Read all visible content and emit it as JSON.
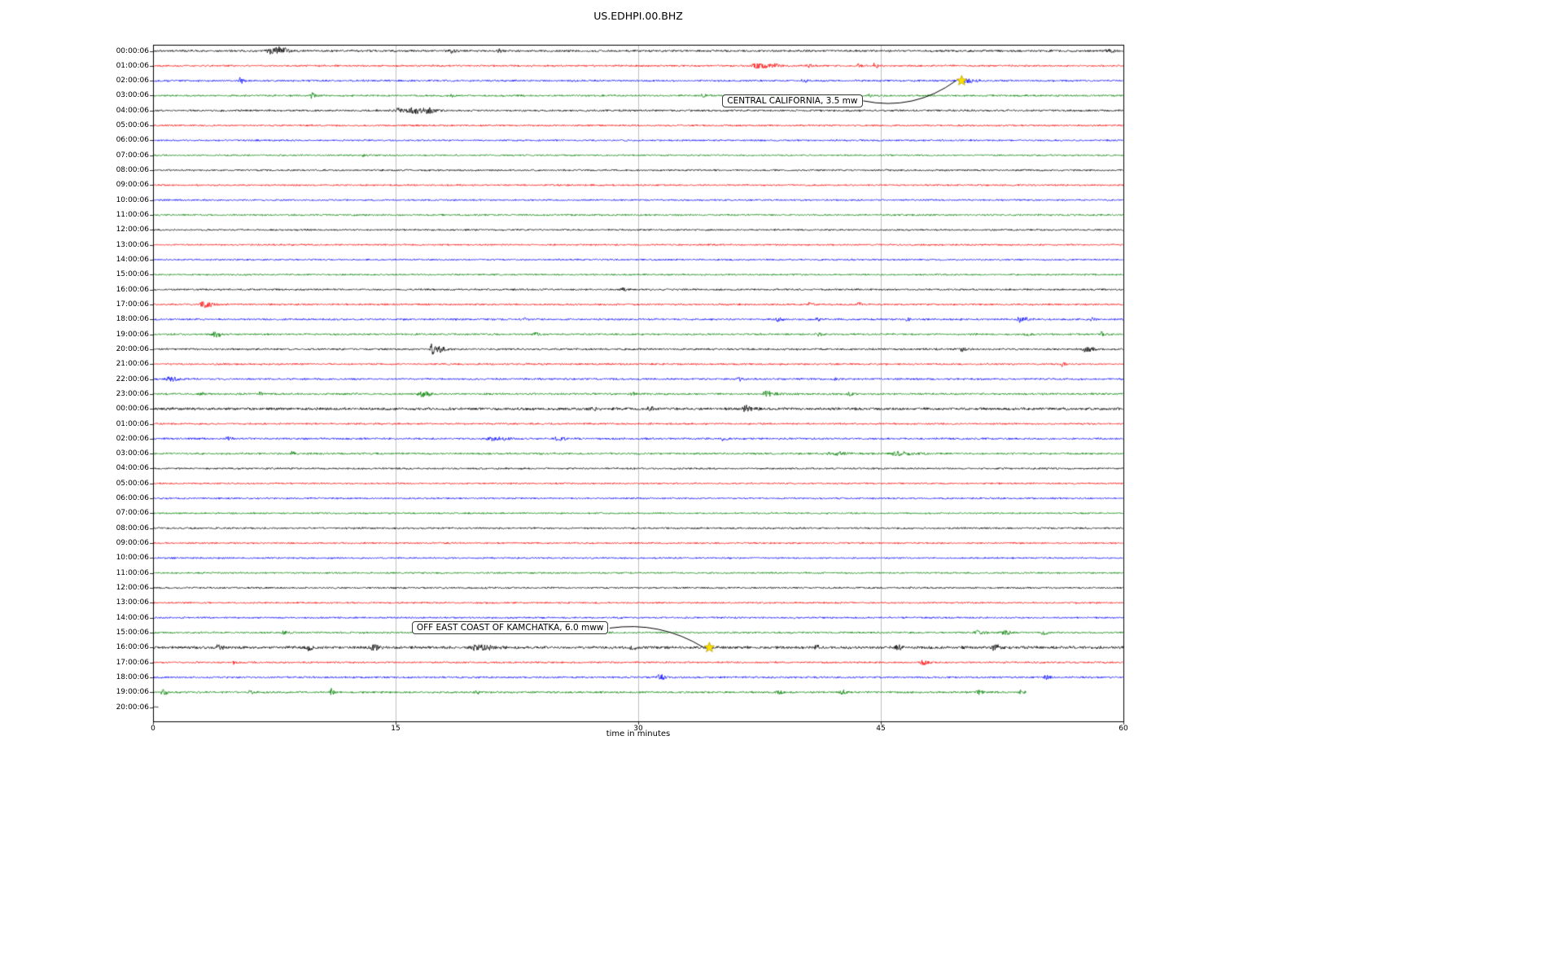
{
  "chart_data": {
    "type": "line",
    "subtype": "seismogram-helicorder-dayplot",
    "title": "US.EDHPI.00.BHZ",
    "xlabel": "time in minutes",
    "xlim": [
      0,
      60
    ],
    "x_ticks": [
      0,
      15,
      30,
      45,
      60
    ],
    "grid": "vertical-only",
    "grid_color": "#b0b0b0",
    "axis_border_color": "#000000",
    "trace_colors_cycle": [
      "#000000",
      "#ff0000",
      "#0000ff",
      "#008000"
    ],
    "marker": "star",
    "marker_color": "#ffe000",
    "rows": [
      {
        "label": "00:00:06",
        "noise": 1.15,
        "len": 60,
        "events": [
          [
            7.3,
            3.8,
            1.0
          ],
          [
            7.9,
            3.0,
            0.5
          ],
          [
            18.5,
            2.3,
            0.5
          ],
          [
            21.3,
            1.8,
            0.4
          ],
          [
            27.5,
            1.2,
            0.3
          ],
          [
            59.0,
            1.6,
            0.6
          ]
        ]
      },
      {
        "label": "01:00:06",
        "noise": 1.0,
        "len": 60,
        "events": [
          [
            37.3,
            2.8,
            1.2
          ],
          [
            38.3,
            2.2,
            0.6
          ],
          [
            40.5,
            1.5,
            0.4
          ],
          [
            43.6,
            2.8,
            0.25
          ],
          [
            44.6,
            3.2,
            0.3
          ]
        ]
      },
      {
        "label": "02:00:06",
        "noise": 1.0,
        "len": 60,
        "events": [
          [
            5.4,
            3.2,
            0.35
          ],
          [
            40.2,
            1.4,
            0.4
          ],
          [
            50.3,
            2.2,
            0.9
          ]
        ]
      },
      {
        "label": "03:00:06",
        "noise": 1.0,
        "len": 60,
        "events": [
          [
            9.8,
            3.4,
            0.35
          ],
          [
            18.4,
            1.8,
            0.3
          ],
          [
            34.0,
            1.8,
            0.4
          ],
          [
            44.3,
            1.4,
            0.3
          ]
        ]
      },
      {
        "label": "04:00:06",
        "noise": 1.05,
        "len": 60,
        "events": [
          [
            15.1,
            2.6,
            0.6
          ],
          [
            16.0,
            3.6,
            1.0
          ],
          [
            16.9,
            3.2,
            0.7
          ]
        ]
      },
      {
        "label": "05:00:06",
        "noise": 0.95,
        "len": 60,
        "events": []
      },
      {
        "label": "06:00:06",
        "noise": 0.9,
        "len": 60,
        "events": []
      },
      {
        "label": "07:00:06",
        "noise": 0.9,
        "len": 60,
        "events": [
          [
            13.0,
            1.3,
            0.3
          ]
        ]
      },
      {
        "label": "08:00:06",
        "noise": 0.95,
        "len": 60,
        "events": []
      },
      {
        "label": "09:00:06",
        "noise": 0.9,
        "len": 60,
        "events": []
      },
      {
        "label": "10:00:06",
        "noise": 0.9,
        "len": 60,
        "events": []
      },
      {
        "label": "11:00:06",
        "noise": 0.95,
        "len": 60,
        "events": []
      },
      {
        "label": "12:00:06",
        "noise": 0.9,
        "len": 60,
        "events": []
      },
      {
        "label": "13:00:06",
        "noise": 0.9,
        "len": 60,
        "events": []
      },
      {
        "label": "14:00:06",
        "noise": 0.9,
        "len": 60,
        "events": []
      },
      {
        "label": "15:00:06",
        "noise": 0.9,
        "len": 60,
        "events": []
      },
      {
        "label": "16:00:06",
        "noise": 0.95,
        "len": 60,
        "events": [
          [
            29.0,
            1.6,
            0.4
          ]
        ]
      },
      {
        "label": "17:00:06",
        "noise": 1.0,
        "len": 60,
        "events": [
          [
            3.1,
            3.6,
            0.7
          ],
          [
            40.6,
            2.0,
            0.35
          ],
          [
            43.6,
            1.8,
            0.3
          ]
        ]
      },
      {
        "label": "18:00:06",
        "noise": 1.0,
        "len": 60,
        "events": [
          [
            23.0,
            1.8,
            0.3
          ],
          [
            38.6,
            2.0,
            0.4
          ],
          [
            41.0,
            1.8,
            0.3
          ],
          [
            46.6,
            2.0,
            0.3
          ],
          [
            53.6,
            3.0,
            0.7
          ],
          [
            58.0,
            1.8,
            0.4
          ]
        ]
      },
      {
        "label": "19:00:06",
        "noise": 1.0,
        "len": 60,
        "events": [
          [
            3.8,
            2.6,
            0.7
          ],
          [
            23.6,
            2.2,
            0.4
          ],
          [
            41.0,
            2.2,
            0.45
          ],
          [
            54.0,
            2.0,
            0.4
          ],
          [
            58.6,
            2.6,
            0.5
          ]
        ]
      },
      {
        "label": "20:00:06",
        "noise": 1.05,
        "len": 60,
        "events": [
          [
            17.2,
            6.5,
            0.35
          ],
          [
            17.7,
            3.2,
            0.7
          ],
          [
            50.0,
            2.2,
            0.4
          ],
          [
            57.6,
            3.0,
            0.7
          ]
        ]
      },
      {
        "label": "21:00:06",
        "noise": 0.95,
        "len": 60,
        "events": [
          [
            56.2,
            3.2,
            0.25
          ]
        ]
      },
      {
        "label": "22:00:06",
        "noise": 1.0,
        "len": 60,
        "events": [
          [
            1.0,
            3.0,
            0.7
          ],
          [
            36.2,
            2.2,
            0.35
          ],
          [
            42.0,
            1.8,
            0.3
          ]
        ]
      },
      {
        "label": "23:00:06",
        "noise": 1.05,
        "len": 60,
        "events": [
          [
            3.0,
            2.2,
            0.4
          ],
          [
            6.6,
            2.0,
            0.4
          ],
          [
            16.6,
            3.4,
            0.7
          ],
          [
            29.6,
            2.0,
            0.4
          ],
          [
            37.9,
            3.0,
            0.8
          ],
          [
            43.0,
            1.8,
            0.4
          ]
        ]
      },
      {
        "label": "00:00:06",
        "noise": 1.45,
        "len": 60,
        "events": [
          [
            27.0,
            2.0,
            0.6
          ],
          [
            30.6,
            2.2,
            0.5
          ],
          [
            36.6,
            3.0,
            0.7
          ]
        ]
      },
      {
        "label": "01:00:06",
        "noise": 0.95,
        "len": 60,
        "events": []
      },
      {
        "label": "02:00:06",
        "noise": 1.05,
        "len": 60,
        "events": [
          [
            4.6,
            2.4,
            0.35
          ],
          [
            21.0,
            1.6,
            1.5
          ],
          [
            25.0,
            1.6,
            0.8
          ],
          [
            35.2,
            1.8,
            0.5
          ]
        ]
      },
      {
        "label": "03:00:06",
        "noise": 1.05,
        "len": 60,
        "events": [
          [
            8.6,
            2.0,
            0.35
          ],
          [
            42.0,
            1.8,
            1.2
          ],
          [
            46.0,
            2.0,
            1.4
          ]
        ]
      },
      {
        "label": "04:00:06",
        "noise": 0.95,
        "len": 60,
        "events": []
      },
      {
        "label": "05:00:06",
        "noise": 0.9,
        "len": 60,
        "events": []
      },
      {
        "label": "06:00:06",
        "noise": 0.9,
        "len": 60,
        "events": []
      },
      {
        "label": "07:00:06",
        "noise": 0.9,
        "len": 60,
        "events": []
      },
      {
        "label": "08:00:06",
        "noise": 0.95,
        "len": 60,
        "events": []
      },
      {
        "label": "09:00:06",
        "noise": 0.9,
        "len": 60,
        "events": []
      },
      {
        "label": "10:00:06",
        "noise": 0.9,
        "len": 60,
        "events": []
      },
      {
        "label": "11:00:06",
        "noise": 0.9,
        "len": 60,
        "events": []
      },
      {
        "label": "12:00:06",
        "noise": 0.95,
        "len": 60,
        "events": []
      },
      {
        "label": "13:00:06",
        "noise": 0.9,
        "len": 60,
        "events": []
      },
      {
        "label": "14:00:06",
        "noise": 0.95,
        "len": 60,
        "events": []
      },
      {
        "label": "15:00:06",
        "noise": 1.0,
        "len": 60,
        "events": [
          [
            8.0,
            1.8,
            0.4
          ],
          [
            51.0,
            2.4,
            0.7
          ],
          [
            52.6,
            2.6,
            0.7
          ],
          [
            55.0,
            2.2,
            0.5
          ]
        ]
      },
      {
        "label": "16:00:06",
        "noise": 1.5,
        "len": 60,
        "events": [
          [
            4.0,
            2.6,
            0.5
          ],
          [
            9.6,
            3.0,
            0.5
          ],
          [
            13.6,
            3.4,
            0.5
          ],
          [
            20.0,
            2.6,
            1.5
          ],
          [
            29.6,
            2.2,
            0.5
          ],
          [
            41.0,
            2.6,
            0.5
          ],
          [
            46.0,
            2.2,
            0.5
          ],
          [
            52.0,
            2.6,
            0.6
          ]
        ]
      },
      {
        "label": "17:00:06",
        "noise": 0.95,
        "len": 60,
        "events": [
          [
            5.0,
            2.0,
            0.3
          ],
          [
            47.6,
            2.6,
            0.6
          ]
        ]
      },
      {
        "label": "18:00:06",
        "noise": 1.0,
        "len": 60,
        "events": [
          [
            31.3,
            3.0,
            0.5
          ],
          [
            55.2,
            2.2,
            0.4
          ]
        ]
      },
      {
        "label": "19:00:06",
        "noise": 1.05,
        "len": 54,
        "events": [
          [
            0.6,
            3.0,
            0.4
          ],
          [
            6.0,
            2.2,
            0.4
          ],
          [
            11.0,
            4.0,
            0.25
          ],
          [
            20.0,
            1.8,
            0.3
          ],
          [
            38.6,
            2.0,
            0.4
          ],
          [
            42.6,
            2.2,
            0.4
          ],
          [
            51.0,
            2.4,
            0.5
          ],
          [
            53.6,
            2.2,
            0.4
          ]
        ]
      },
      {
        "label": "20:00:06",
        "noise": 0.7,
        "len": 0.35,
        "events": []
      }
    ],
    "annotations": [
      {
        "label": "CENTRAL CALIFORNIA, 3.5 mw",
        "row": 2,
        "minute": 50.0,
        "text_minute": 35.2,
        "text_row": 3.35,
        "rad": -0.22
      },
      {
        "label": "OFF EAST COAST OF KAMCHATKA, 6.0 mww",
        "row": 40,
        "minute": 34.4,
        "text_minute": 16.0,
        "text_row": 38.7,
        "rad": 0.18
      }
    ]
  }
}
